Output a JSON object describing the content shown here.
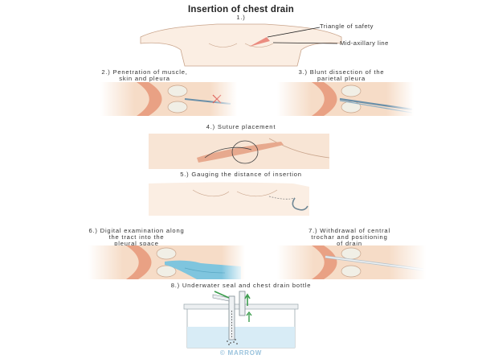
{
  "title": "Insertion of chest drain",
  "steps": {
    "s1": "1.)",
    "s2_line1": "2.) Penetration of muscle,",
    "s2_line2": "skin and pleura",
    "s3_line1": "3.) Blunt dissection of the",
    "s3_line2": "parietal pleura",
    "s4": "4.) Suture placement",
    "s5": "5.) Gauging the distance of insertion",
    "s6_line1": "6.) Digital examination along",
    "s6_line2": "the tract into the",
    "s6_line3": "pleural space",
    "s7_line1": "7.) Withdrawal of central",
    "s7_line2": "trochar and positioning",
    "s7_line3": "of drain",
    "s8": "8.) Underwater seal and chest drain bottle"
  },
  "labels": {
    "triangle": "Triangle of safety",
    "midaxillary": "Mid-axillary line"
  },
  "watermark": "© MARROW",
  "colors": {
    "skin": "#f6dcc7",
    "skin_edge": "#c9a48b",
    "muscle": "#e9a184",
    "rib": "#f1efe6",
    "needle": "#6a8fa8",
    "glove": "#7fc5de",
    "water": "#d8ecf6",
    "arrow": "#3a9c4c",
    "highlight": "#e87a6e"
  }
}
